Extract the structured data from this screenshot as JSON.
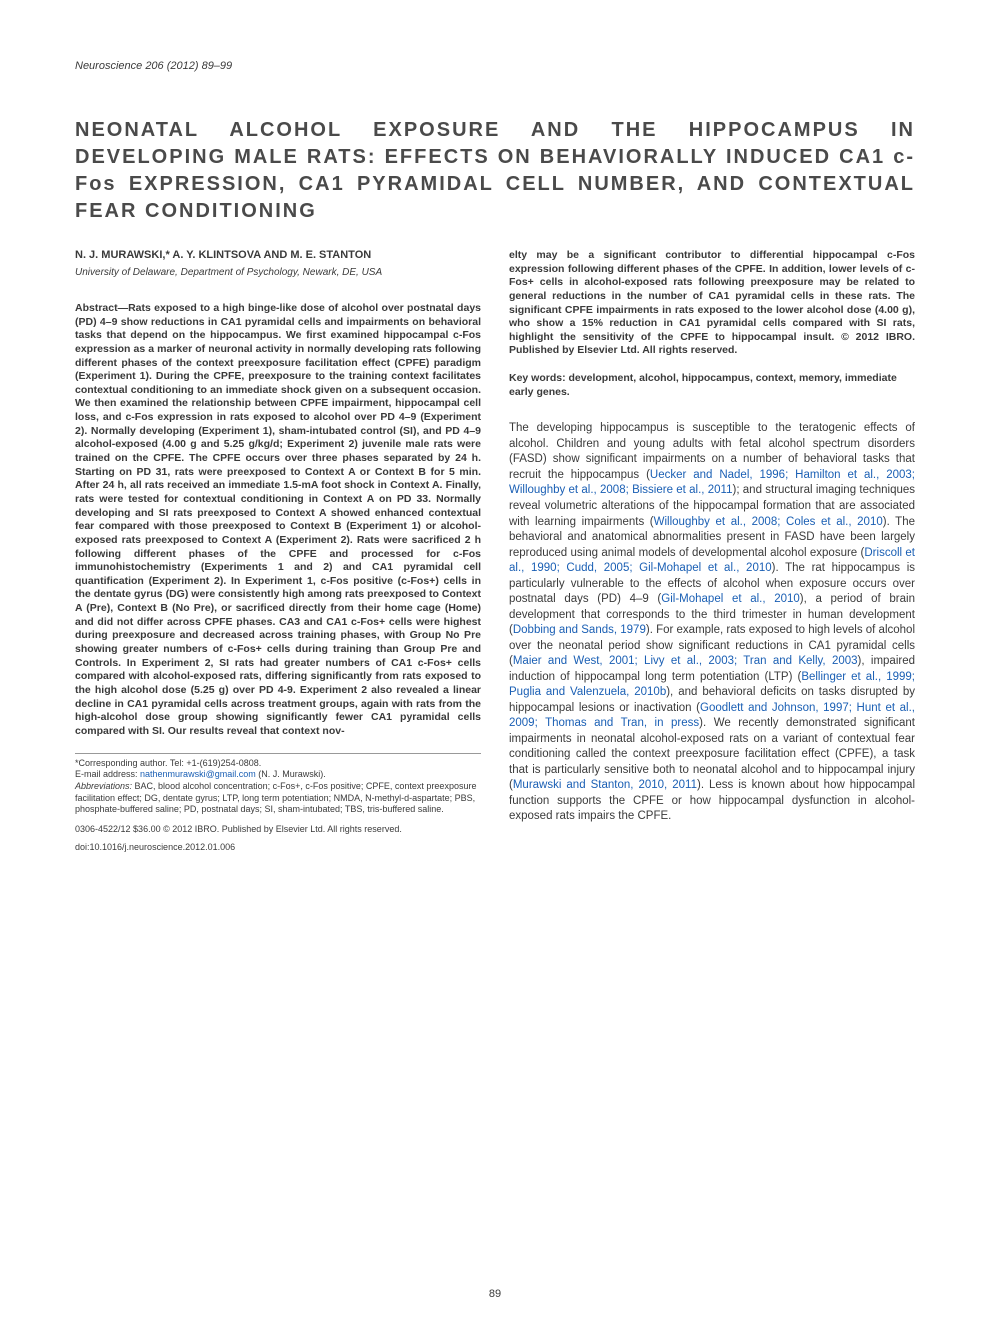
{
  "journal_ref": "Neuroscience 206 (2012) 89–99",
  "title": "NEONATAL ALCOHOL EXPOSURE AND THE HIPPOCAMPUS IN DEVELOPING MALE RATS: EFFECTS ON BEHAVIORALLY INDUCED CA1 c-Fos EXPRESSION, CA1 PYRAMIDAL CELL NUMBER, AND CONTEXTUAL FEAR CONDITIONING",
  "authors": "N. J. MURAWSKI,* A. Y. KLINTSOVA AND M. E. STANTON",
  "affiliation": "University of Delaware, Department of Psychology, Newark, DE, USA",
  "abstract_left": "Abstract—Rats exposed to a high binge-like dose of alcohol over postnatal days (PD) 4–9 show reductions in CA1 pyramidal cells and impairments on behavioral tasks that depend on the hippocampus. We first examined hippocampal c-Fos expression as a marker of neuronal activity in normally developing rats following different phases of the context preexposure facilitation effect (CPFE) paradigm (Experiment 1). During the CPFE, preexposure to the training context facilitates contextual conditioning to an immediate shock given on a subsequent occasion. We then examined the relationship between CPFE impairment, hippocampal cell loss, and c-Fos expression in rats exposed to alcohol over PD 4–9 (Experiment 2). Normally developing (Experiment 1), sham-intubated control (SI), and PD 4–9 alcohol-exposed (4.00 g and 5.25 g/kg/d; Experiment 2) juvenile male rats were trained on the CPFE. The CPFE occurs over three phases separated by 24 h. Starting on PD 31, rats were preexposed to Context A or Context B for 5 min. After 24 h, all rats received an immediate 1.5-mA foot shock in Context A. Finally, rats were tested for contextual conditioning in Context A on PD 33. Normally developing and SI rats preexposed to Context A showed enhanced contextual fear compared with those preexposed to Context B (Experiment 1) or alcohol-exposed rats preexposed to Context A (Experiment 2). Rats were sacrificed 2 h following different phases of the CPFE and processed for c-Fos immunohistochemistry (Experiments 1 and 2) and CA1 pyramidal cell quantification (Experiment 2). In Experiment 1, c-Fos positive (c-Fos+) cells in the dentate gyrus (DG) were consistently high among rats preexposed to Context A (Pre), Context B (No Pre), or sacrificed directly from their home cage (Home) and did not differ across CPFE phases. CA3 and CA1 c-Fos+ cells were highest during preexposure and decreased across training phases, with Group No Pre showing greater numbers of c-Fos+ cells during training than Group Pre and Controls. In Experiment 2, SI rats had greater numbers of CA1 c-Fos+ cells compared with alcohol-exposed rats, differing significantly from rats exposed to the high alcohol dose (5.25 g) over PD 4-9. Experiment 2 also revealed a linear decline in CA1 pyramidal cells across treatment groups, again with rats from the high-alcohol dose group showing significantly fewer CA1 pyramidal cells compared with SI. Our results reveal that context nov-",
  "abstract_right": "elty may be a significant contributor to differential hippocampal c-Fos expression following different phases of the CPFE. In addition, lower levels of c-Fos+ cells in alcohol-exposed rats following preexposure may be related to general reductions in the number of CA1 pyramidal cells in these rats. The significant CPFE impairments in rats exposed to the lower alcohol dose (4.00 g), who show a 15% reduction in CA1 pyramidal cells compared with SI rats, highlight the sensitivity of the CPFE to hippocampal insult. © 2012 IBRO. Published by Elsevier Ltd. All rights reserved.",
  "keywords": "Key words: development, alcohol, hippocampus, context, memory, immediate early genes.",
  "intro_p1_a": "The developing hippocampus is susceptible to the teratogenic effects of alcohol. Children and young adults with fetal alcohol spectrum disorders (FASD) show significant impairments on a number of behavioral tasks that recruit the hippocampus (",
  "intro_ref1": "Uecker and Nadel, 1996; Hamilton et al., 2003; Willoughby et al., 2008; Bissiere et al., 2011",
  "intro_p1_b": "); and structural imaging techniques reveal volumetric alterations of the hippocampal formation that are associated with learning impairments (",
  "intro_ref2": "Willoughby et al., 2008; Coles et al., 2010",
  "intro_p1_c": "). The behavioral and anatomical abnormalities present in FASD have been largely reproduced using animal models of developmental alcohol exposure (",
  "intro_ref3": "Driscoll et al., 1990; Cudd, 2005; Gil-Mohapel et al., 2010",
  "intro_p1_d": "). The rat hippocampus is particularly vulnerable to the effects of alcohol when exposure occurs over postnatal days (PD) 4–9 (",
  "intro_ref4": "Gil-Mohapel et al., 2010",
  "intro_p1_e": "), a period of brain development that corresponds to the third trimester in human development (",
  "intro_ref5": "Dobbing and Sands, 1979",
  "intro_p1_f": "). For example, rats exposed to high levels of alcohol over the neonatal period show significant reductions in CA1 pyramidal cells (",
  "intro_ref6": "Maier and West, 2001; Livy et al., 2003; Tran and Kelly, 2003",
  "intro_p1_g": "), impaired induction of hippocampal long term potentiation (LTP) (",
  "intro_ref7": "Bellinger et al., 1999; Puglia and Valenzuela, 2010b",
  "intro_p1_h": "), and behavioral deficits on tasks disrupted by hippocampal lesions or inactivation (",
  "intro_ref8": "Goodlett and Johnson, 1997; Hunt et al., 2009; Thomas and Tran, in press",
  "intro_p1_i": "). We recently demonstrated significant impairments in neonatal alcohol-exposed rats on a variant of contextual fear conditioning called the context preexposure facilitation effect (CPFE), a task that is particularly sensitive both to neonatal alcohol and to hippocampal injury (",
  "intro_ref9": "Murawski and Stanton, 2010, 2011",
  "intro_p1_j": "). Less is known about how hippocampal function supports the CPFE or how hippocampal dysfunction in alcohol-exposed rats impairs the CPFE.",
  "footnote_corresponding": "*Corresponding author. Tel: +1-(619)254-0808.",
  "footnote_email_label": "E-mail address: ",
  "footnote_email": "nathenmurawski@gmail.com",
  "footnote_email_name": " (N. J. Murawski).",
  "footnote_abbrev_label": "Abbreviations: ",
  "footnote_abbrev": "BAC, blood alcohol concentration; c-Fos+, c-Fos positive; CPFE, context preexposure facilitation effect; DG, dentate gyrus; LTP, long term potentiation; NMDA, N-methyl-d-aspartate; PBS, phosphate-buffered saline; PD, postnatal days; SI, sham-intubated; TBS, tris-buffered saline.",
  "copyright": "0306-4522/12 $36.00 © 2012 IBRO. Published by Elsevier Ltd. All rights reserved.",
  "doi": "doi:10.1016/j.neuroscience.2012.01.006",
  "page_num": "89",
  "colors": {
    "text": "#3a3a3a",
    "link": "#1a5fb4",
    "background": "#ffffff"
  }
}
